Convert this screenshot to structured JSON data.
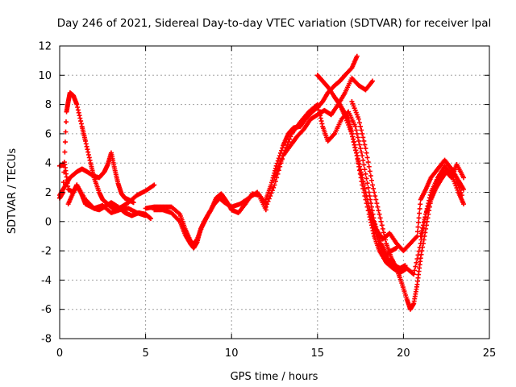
{
  "chart_data": {
    "type": "scatter",
    "title": "Day 246 of 2021, Sidereal Day-to-day VTEC variation (SDTVAR) for receiver lpal",
    "xlabel": "GPS time / hours",
    "ylabel": "SDTVAR / TECUs",
    "xlim": [
      0,
      25
    ],
    "ylim": [
      -8,
      12
    ],
    "xticks": [
      0,
      5,
      10,
      15,
      20,
      25
    ],
    "yticks": [
      -8,
      -6,
      -4,
      -2,
      0,
      2,
      4,
      6,
      8,
      10,
      12
    ],
    "grid": true,
    "legend": "none",
    "marker": "plus",
    "color": "#ff0000",
    "series": [
      {
        "x": [
          0.0,
          0.2,
          0.4,
          0.5,
          0.6,
          0.8,
          1.0,
          1.3,
          1.5,
          1.8,
          2.0,
          2.3,
          2.5,
          2.8,
          3.0,
          3.3,
          3.6,
          4.0,
          4.5,
          5.0,
          5.5
        ],
        "y": [
          1.6,
          2.0,
          7.5,
          8.2,
          8.8,
          8.6,
          8.0,
          6.5,
          5.5,
          4.0,
          3.0,
          2.0,
          1.5,
          1.2,
          1.0,
          0.8,
          1.0,
          1.3,
          1.8,
          2.1,
          2.5
        ]
      },
      {
        "x": [
          0.0,
          0.3,
          0.5,
          0.8,
          1.0,
          1.3,
          1.5,
          2.0,
          2.3,
          2.6,
          3.0,
          3.4,
          3.8,
          4.2,
          4.6,
          5.0,
          5.3
        ],
        "y": [
          3.8,
          3.9,
          2.2,
          2.0,
          2.5,
          1.8,
          1.2,
          0.9,
          0.8,
          1.0,
          1.3,
          1.0,
          0.6,
          0.4,
          0.6,
          0.5,
          0.2
        ]
      },
      {
        "x": [
          0.0,
          0.3,
          0.6,
          1.0,
          1.3,
          1.6,
          2.0,
          2.3,
          2.6,
          2.8,
          3.0,
          3.2,
          3.4,
          3.6,
          3.8,
          4.0,
          4.3
        ],
        "y": [
          1.8,
          2.4,
          3.0,
          3.4,
          3.6,
          3.4,
          3.1,
          3.0,
          3.4,
          3.9,
          4.7,
          3.6,
          2.6,
          1.9,
          1.6,
          1.5,
          1.3
        ]
      },
      {
        "x": [
          0.5,
          0.8,
          1.0,
          1.5,
          2.0,
          2.5,
          3.0,
          3.5,
          4.0,
          4.5,
          5.0
        ],
        "y": [
          1.2,
          2.0,
          2.5,
          1.5,
          0.9,
          1.1,
          0.6,
          0.8,
          0.9,
          0.6,
          0.4
        ]
      },
      {
        "x": [
          5.0,
          5.5,
          6.0,
          6.5,
          7.0,
          7.3,
          7.6,
          7.8,
          8.0,
          8.3,
          8.6,
          9.0,
          9.3,
          9.6,
          10.0,
          10.5,
          11.0,
          11.5,
          12.0
        ],
        "y": [
          0.9,
          1.0,
          1.0,
          1.0,
          0.5,
          -0.5,
          -1.3,
          -1.6,
          -1.2,
          -0.3,
          0.4,
          1.2,
          1.6,
          1.3,
          1.0,
          1.2,
          1.6,
          2.0,
          1.2
        ]
      },
      {
        "x": [
          5.5,
          6.0,
          6.5,
          7.0,
          7.3,
          7.6,
          7.8,
          8.0,
          8.2,
          8.5,
          8.8,
          9.1,
          9.4,
          9.7,
          10.0,
          10.4,
          10.8,
          11.2,
          11.6,
          12.0
        ],
        "y": [
          0.8,
          0.8,
          0.6,
          0.0,
          -0.9,
          -1.5,
          -1.8,
          -1.4,
          -0.5,
          0.2,
          0.8,
          1.6,
          1.9,
          1.4,
          0.8,
          0.6,
          1.2,
          1.9,
          1.8,
          0.8
        ]
      },
      {
        "x": [
          12.0,
          12.3,
          12.6,
          13.0,
          13.3,
          13.6,
          14.0,
          14.3,
          14.6,
          15.0,
          15.3,
          15.6,
          16.0,
          16.3,
          16.6,
          17.0,
          17.3
        ],
        "y": [
          1.5,
          2.5,
          3.8,
          5.2,
          6.0,
          6.4,
          6.5,
          7.0,
          7.4,
          7.8,
          8.2,
          8.8,
          9.3,
          9.6,
          10.0,
          10.5,
          11.3
        ]
      },
      {
        "x": [
          12.0,
          12.5,
          13.0,
          13.5,
          13.8,
          14.2,
          14.6,
          15.0,
          15.4,
          15.8,
          16.2,
          16.6,
          17.0,
          17.4,
          17.8,
          18.2
        ],
        "y": [
          1.0,
          2.5,
          4.5,
          5.3,
          5.8,
          6.3,
          7.0,
          7.3,
          7.6,
          7.3,
          8.0,
          8.8,
          9.8,
          9.3,
          9.0,
          9.6
        ]
      },
      {
        "x": [
          12.5,
          13.0,
          13.5,
          14.0,
          14.5,
          15.0,
          15.3,
          15.6,
          16.0,
          16.4,
          16.8,
          17.2,
          17.6,
          18.0,
          18.3,
          18.7,
          19.0,
          19.3,
          19.6
        ],
        "y": [
          3.0,
          4.5,
          6.0,
          6.8,
          7.5,
          8.0,
          6.5,
          5.5,
          6.0,
          7.0,
          7.5,
          6.5,
          4.5,
          2.0,
          0.0,
          -1.5,
          -2.3,
          -2.0,
          -1.8
        ]
      },
      {
        "x": [
          15.0,
          15.3,
          15.6,
          16.0,
          16.4,
          16.8,
          17.0,
          17.3,
          17.6,
          18.0,
          18.3,
          18.6,
          18.9,
          19.2,
          19.5,
          19.8,
          20.1
        ],
        "y": [
          10.0,
          9.6,
          9.2,
          8.5,
          7.8,
          7.0,
          6.0,
          4.5,
          3.0,
          1.0,
          -0.5,
          -1.5,
          -2.2,
          -2.8,
          -3.0,
          -3.2,
          -3.0
        ]
      },
      {
        "x": [
          16.0,
          16.3,
          16.6,
          17.0,
          17.3,
          17.6,
          18.0,
          18.3,
          18.6,
          19.0,
          19.4,
          19.8,
          20.2,
          20.6,
          21.0,
          21.3,
          21.6,
          22.0,
          22.5,
          23.0,
          23.4
        ],
        "y": [
          8.5,
          8.0,
          7.2,
          6.0,
          4.5,
          2.5,
          0.5,
          -1.0,
          -2.0,
          -2.8,
          -3.2,
          -3.5,
          -3.2,
          -3.6,
          -1.5,
          0.5,
          2.0,
          3.0,
          3.5,
          3.2,
          1.8
        ]
      },
      {
        "x": [
          17.0,
          17.4,
          17.8,
          18.2,
          18.6,
          19.0,
          19.3,
          19.6,
          19.9,
          20.2,
          20.4,
          20.6,
          20.8,
          21.0,
          21.3,
          21.6,
          22.0,
          22.4,
          22.8,
          23.2,
          23.5
        ],
        "y": [
          8.2,
          7.0,
          5.0,
          2.5,
          0.5,
          -1.5,
          -2.5,
          -3.2,
          -4.2,
          -5.3,
          -6.0,
          -5.6,
          -4.3,
          -2.5,
          -0.5,
          1.5,
          3.0,
          3.8,
          3.2,
          2.0,
          1.2
        ]
      },
      {
        "x": [
          17.0,
          17.3,
          17.6,
          18.0,
          18.4,
          18.8,
          19.2,
          19.6,
          20.0,
          20.4,
          20.8,
          21.0,
          21.3,
          21.6,
          22.0,
          22.4,
          22.8,
          23.2,
          23.5
        ],
        "y": [
          6.0,
          4.5,
          3.0,
          1.0,
          -0.5,
          -1.2,
          -0.8,
          -1.5,
          -2.0,
          -1.5,
          -1.0,
          1.5,
          2.2,
          3.0,
          3.6,
          4.2,
          3.6,
          2.8,
          2.2
        ]
      },
      {
        "x": [
          21.0,
          21.3,
          21.6,
          21.9,
          22.2,
          22.5,
          22.8,
          23.1,
          23.5
        ],
        "y": [
          -1.0,
          0.5,
          1.5,
          2.3,
          2.9,
          3.4,
          3.0,
          3.9,
          3.0
        ]
      }
    ]
  }
}
